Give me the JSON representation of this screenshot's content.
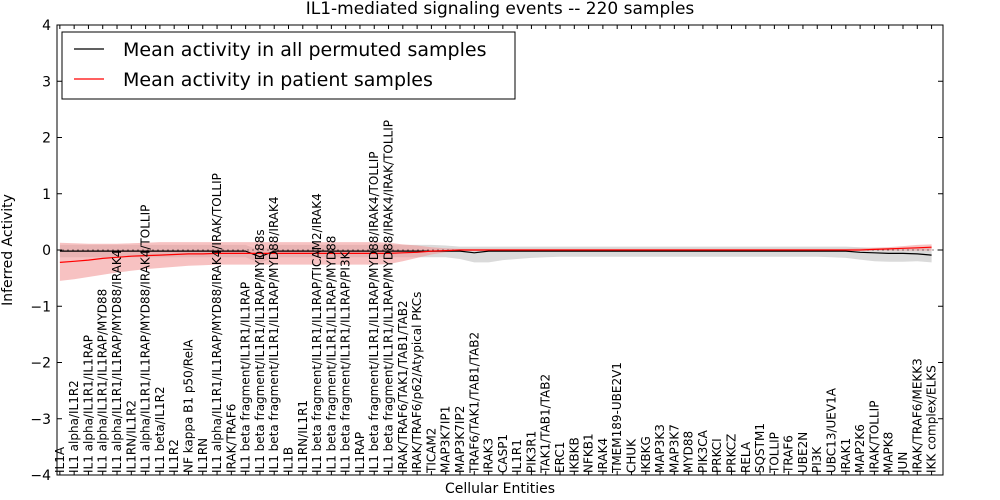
{
  "chart_data": {
    "type": "line",
    "title": "IL1-mediated signaling events -- 220 samples",
    "xlabel": "Cellular Entities",
    "ylabel": "Inferred Activity",
    "ylim": [
      -4,
      4
    ],
    "yticks": [
      -4,
      -3,
      -2,
      -1,
      0,
      1,
      2,
      3,
      4
    ],
    "ytick_labels": [
      "−4",
      "−3",
      "−2",
      "−1",
      "0",
      "1",
      "2",
      "3",
      "4"
    ],
    "grid": false,
    "legend_position": "top-left",
    "categories": [
      "IL1A",
      "IL1 alpha/IL1R2",
      "IL1 alpha/IL1R1/IL1RAP",
      "IL1 alpha/IL1R1/IL1RAP/MYD88",
      "IL1 alpha/IL1R1/IL1RAP/MYD88/IRAK4",
      "IL1RN/IL1R2",
      "IL1 alpha/IL1R1/IL1RAP/MYD88/IRAK4/TOLLIP",
      "IL1 beta/IL1R2",
      "IL1R2",
      "NF kappa B1 p50/RelA",
      "IL1RN",
      "IL1 alpha/IL1R1/IL1RAP/MYD88/IRAK4/IRAK/TOLLIP",
      "IRAK/TRAF6",
      "IL1 beta fragment/IL1R1/IL1RAP",
      "IL1 beta fragment/IL1R1/IL1RAP/MYD88s",
      "IL1 beta fragment/IL1R1/IL1RAP/MYD88/IRAK4",
      "IL1B",
      "IL1RN/IL1R1",
      "IL1 beta fragment/IL1R1/IL1RAP/TICAM2/IRAK4",
      "IL1 beta fragment/IL1R1/IL1RAP/MYD88",
      "IL1 beta fragment/IL1R1/IL1RAP/PI3K",
      "IL1RAP",
      "IL1 beta fragment/IL1R1/IL1RAP/MYD88/IRAK4/TOLLIP",
      "IL1 beta fragment/IL1R1/IL1RAP/MYD88/IRAK4/IRAK/TOLLIP",
      "IRAK/TRAF6/TAK1/TAB1/TAB2",
      "IRAK/TRAF6/p62/Atypical PKCs",
      "TICAM2",
      "MAP3K7IP1",
      "MAP3K7IP2",
      "TRAF6/TAK1/TAB1/TAB2",
      "IRAK3",
      "CASP1",
      "IL1R1",
      "PIK3R1",
      "TAK1/TAB1/TAB2",
      "ERC1",
      "IKBKB",
      "NFKB1",
      "IRAK4",
      "TMEM189-UBE2V1",
      "CHUK",
      "IKBKG",
      "MAP3K3",
      "MAP3K7",
      "MYD88",
      "PIK3CA",
      "PRKCI",
      "PRKCZ",
      "RELA",
      "SQSTM1",
      "TOLLIP",
      "TRAF6",
      "UBE2N",
      "PI3K",
      "UBC13/UEV1A",
      "IRAK1",
      "MAP2K6",
      "IRAK/TOLLIP",
      "MAPK8",
      "JUN",
      "IRAK/TRAF6/MEKK3",
      "IKK complex/ELKS"
    ],
    "series": [
      {
        "name": "Mean activity in all permuted samples",
        "color": "#000000",
        "band_color": "#bbbbbb",
        "values": [
          -0.02,
          -0.02,
          -0.02,
          -0.02,
          -0.02,
          -0.02,
          -0.02,
          -0.02,
          -0.02,
          -0.02,
          -0.02,
          -0.02,
          -0.02,
          -0.02,
          -0.12,
          -0.02,
          -0.02,
          -0.02,
          -0.02,
          -0.02,
          -0.02,
          -0.02,
          -0.02,
          -0.02,
          -0.02,
          -0.02,
          -0.02,
          -0.02,
          -0.02,
          -0.05,
          -0.02,
          -0.02,
          -0.02,
          -0.02,
          -0.02,
          -0.02,
          -0.02,
          -0.02,
          -0.02,
          -0.02,
          -0.02,
          -0.02,
          -0.02,
          -0.02,
          -0.02,
          -0.02,
          -0.02,
          -0.02,
          -0.02,
          -0.02,
          -0.02,
          -0.02,
          -0.02,
          -0.02,
          -0.02,
          -0.02,
          -0.04,
          -0.05,
          -0.06,
          -0.06,
          -0.07,
          -0.09
        ],
        "lower": [
          -0.13,
          -0.13,
          -0.13,
          -0.13,
          -0.13,
          -0.13,
          -0.13,
          -0.13,
          -0.13,
          -0.13,
          -0.13,
          -0.13,
          -0.13,
          -0.13,
          -0.23,
          -0.13,
          -0.13,
          -0.13,
          -0.13,
          -0.13,
          -0.13,
          -0.13,
          -0.13,
          -0.13,
          -0.13,
          -0.13,
          -0.13,
          -0.13,
          -0.16,
          -0.22,
          -0.22,
          -0.18,
          -0.16,
          -0.14,
          -0.13,
          -0.12,
          -0.12,
          -0.12,
          -0.12,
          -0.12,
          -0.12,
          -0.12,
          -0.12,
          -0.12,
          -0.12,
          -0.12,
          -0.12,
          -0.12,
          -0.12,
          -0.12,
          -0.12,
          -0.12,
          -0.12,
          -0.12,
          -0.13,
          -0.14,
          -0.17,
          -0.2,
          -0.21,
          -0.21,
          -0.2,
          -0.22
        ],
        "upper": [
          0.09,
          0.09,
          0.09,
          0.09,
          0.09,
          0.09,
          0.09,
          0.09,
          0.09,
          0.09,
          0.09,
          0.09,
          0.09,
          0.09,
          -0.01,
          0.09,
          0.09,
          0.09,
          0.09,
          0.09,
          0.09,
          0.09,
          0.09,
          0.09,
          0.09,
          0.09,
          0.09,
          0.08,
          0.06,
          0.06,
          0.06,
          0.06,
          0.06,
          0.06,
          0.06,
          0.06,
          0.06,
          0.06,
          0.06,
          0.06,
          0.06,
          0.06,
          0.06,
          0.06,
          0.06,
          0.06,
          0.06,
          0.06,
          0.06,
          0.06,
          0.06,
          0.06,
          0.06,
          0.06,
          0.06,
          0.06,
          0.05,
          0.04,
          0.04,
          0.04,
          0.04,
          0.04
        ]
      },
      {
        "name": "Mean activity in patient samples",
        "color": "#ff0000",
        "band_color": "#f29a9a",
        "values": [
          -0.22,
          -0.2,
          -0.18,
          -0.15,
          -0.13,
          -0.11,
          -0.1,
          -0.09,
          -0.08,
          -0.07,
          -0.07,
          -0.06,
          -0.06,
          -0.06,
          -0.06,
          -0.06,
          -0.06,
          -0.06,
          -0.06,
          -0.06,
          -0.06,
          -0.06,
          -0.06,
          -0.06,
          -0.05,
          -0.04,
          -0.02,
          -0.01,
          0.0,
          0.0,
          0.0,
          0.0,
          0.0,
          0.0,
          0.0,
          0.0,
          0.0,
          0.0,
          0.0,
          0.0,
          0.0,
          0.0,
          0.0,
          0.0,
          0.0,
          0.0,
          0.0,
          0.0,
          0.0,
          0.0,
          0.0,
          0.0,
          0.0,
          0.0,
          0.0,
          0.0,
          0.0,
          0.01,
          0.02,
          0.03,
          0.04,
          0.05
        ],
        "lower": [
          -0.55,
          -0.52,
          -0.48,
          -0.44,
          -0.4,
          -0.37,
          -0.34,
          -0.32,
          -0.3,
          -0.28,
          -0.27,
          -0.26,
          -0.26,
          -0.26,
          -0.26,
          -0.26,
          -0.26,
          -0.26,
          -0.26,
          -0.26,
          -0.26,
          -0.26,
          -0.26,
          -0.25,
          -0.2,
          -0.14,
          -0.08,
          -0.04,
          -0.02,
          -0.02,
          -0.02,
          -0.02,
          -0.02,
          -0.02,
          -0.02,
          -0.02,
          -0.02,
          -0.02,
          -0.02,
          -0.02,
          -0.02,
          -0.02,
          -0.02,
          -0.02,
          -0.02,
          -0.02,
          -0.02,
          -0.02,
          -0.02,
          -0.02,
          -0.02,
          -0.02,
          -0.02,
          -0.02,
          -0.02,
          -0.02,
          -0.01,
          -0.01,
          -0.01,
          -0.01,
          -0.01,
          -0.01
        ],
        "upper": [
          0.13,
          0.12,
          0.11,
          0.11,
          0.11,
          0.12,
          0.13,
          0.14,
          0.14,
          0.14,
          0.14,
          0.14,
          0.14,
          0.14,
          0.14,
          0.14,
          0.14,
          0.14,
          0.14,
          0.14,
          0.14,
          0.14,
          0.14,
          0.13,
          0.1,
          0.08,
          0.05,
          0.03,
          0.02,
          0.02,
          0.02,
          0.02,
          0.02,
          0.02,
          0.02,
          0.02,
          0.02,
          0.02,
          0.02,
          0.02,
          0.02,
          0.02,
          0.02,
          0.02,
          0.02,
          0.02,
          0.02,
          0.02,
          0.02,
          0.02,
          0.02,
          0.02,
          0.02,
          0.02,
          0.02,
          0.02,
          0.03,
          0.04,
          0.05,
          0.07,
          0.09,
          0.1
        ]
      }
    ]
  }
}
